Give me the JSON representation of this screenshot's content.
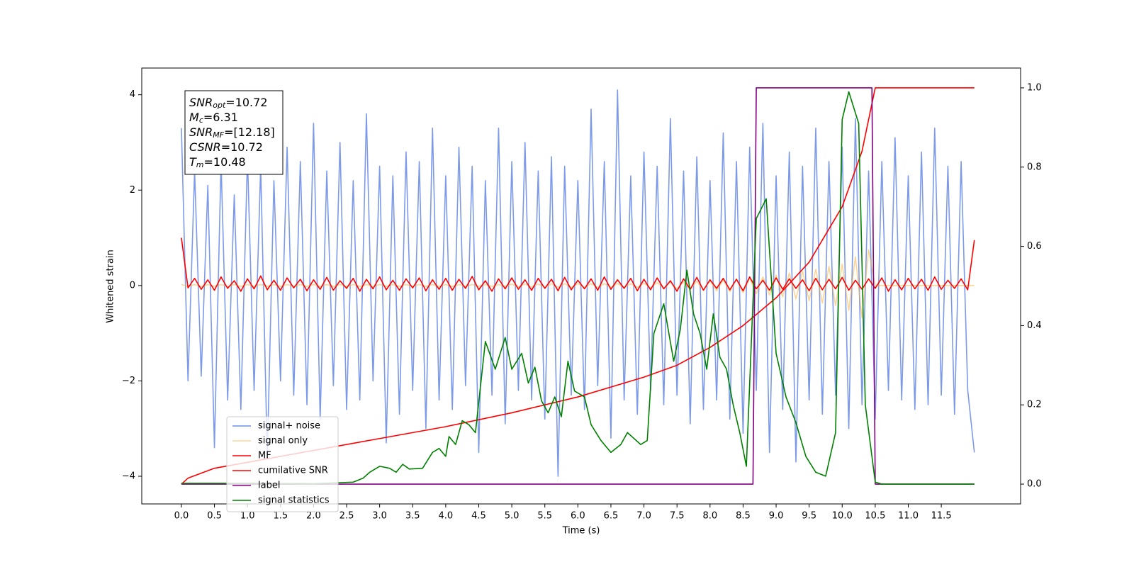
{
  "chart_data": {
    "type": "line",
    "xlabel": "Time (s)",
    "ylabel": "Whitened strain",
    "xlim": [
      -0.6,
      12.7
    ],
    "ylim": [
      -4.58,
      4.56
    ],
    "y2lim": [
      -0.05,
      1.05
    ],
    "xticks": [
      {
        "value": 0,
        "label": "0.0"
      },
      0.5,
      {
        "value": 1,
        "label": "1.0"
      },
      1.5,
      {
        "value": 2,
        "label": "2.0"
      },
      2.5,
      {
        "value": 3,
        "label": "3.0"
      },
      3.5,
      {
        "value": 4,
        "label": "4.0"
      },
      4.5,
      {
        "value": 5,
        "label": "5.0"
      },
      5.5,
      {
        "value": 6,
        "label": "6.0"
      },
      6.5,
      {
        "value": 7,
        "label": "7.0"
      },
      7.5,
      {
        "value": 8,
        "label": "8.0"
      },
      8.5,
      {
        "value": 9,
        "label": "9.0"
      },
      9.5,
      {
        "value": 10,
        "label": "10.0"
      },
      10.5,
      {
        "value": 11,
        "label": "11.0"
      },
      11.5
    ],
    "yticks": [
      {
        "value": -4,
        "label": "−4"
      },
      {
        "value": -2,
        "label": "−2"
      },
      0,
      2,
      4
    ],
    "y2ticks": [
      {
        "value": 0,
        "label": "0.0"
      },
      0.2,
      0.4,
      0.6,
      0.8,
      {
        "value": 1,
        "label": "1.0"
      }
    ],
    "legend": "lower left",
    "annotation": [
      {
        "base": "SNR",
        "sub": "opt",
        "text": "=10.72"
      },
      {
        "base": "M",
        "sub": "c",
        "text": "=6.31"
      },
      {
        "base": "SNR",
        "sub": "MF",
        "text": "=[12.18]"
      },
      {
        "base": "CSNR",
        "text": "=10.72"
      },
      {
        "base": "T",
        "sub": "m",
        "text": "=10.48"
      }
    ],
    "x": [
      0,
      0.1,
      0.2,
      0.3,
      0.4,
      0.5,
      0.6,
      0.7,
      0.8,
      0.9,
      1,
      1.1,
      1.2,
      1.3,
      1.4,
      1.5,
      1.6,
      1.7,
      1.8,
      1.9,
      2,
      2.1,
      2.2,
      2.3,
      2.4,
      2.5,
      2.6,
      2.7,
      2.8,
      2.9,
      3,
      3.1,
      3.2,
      3.3,
      3.4,
      3.5,
      3.6,
      3.7,
      3.8,
      3.9,
      4,
      4.1,
      4.2,
      4.3,
      4.4,
      4.5,
      4.6,
      4.7,
      4.8,
      4.9,
      5,
      5.1,
      5.2,
      5.3,
      5.4,
      5.5,
      5.6,
      5.7,
      5.8,
      5.9,
      6,
      6.1,
      6.2,
      6.3,
      6.4,
      6.5,
      6.6,
      6.7,
      6.8,
      6.9,
      7,
      7.1,
      7.2,
      7.3,
      7.4,
      7.5,
      7.6,
      7.7,
      7.8,
      7.9,
      8,
      8.1,
      8.2,
      8.3,
      8.4,
      8.5,
      8.6,
      8.7,
      8.8,
      8.9,
      9,
      9.1,
      9.2,
      9.3,
      9.4,
      9.5,
      9.6,
      9.7,
      9.8,
      9.9,
      10,
      10.1,
      10.2,
      10.3,
      10.4,
      10.5,
      10.6,
      10.7,
      10.8,
      10.9,
      11,
      11.1,
      11.2,
      11.3,
      11.4,
      11.5,
      11.6,
      11.7,
      11.8,
      11.9,
      12
    ],
    "series": [
      {
        "name": "signal+ noise",
        "color": "#6f8fe8",
        "values": [
          3.3,
          -2.0,
          2.4,
          -1.9,
          2.1,
          -3.4,
          2.6,
          -2.4,
          1.9,
          -2.6,
          2.7,
          -2.2,
          2.5,
          -3.6,
          2.2,
          -2.0,
          2.9,
          -2.3,
          2.6,
          -2.5,
          3.4,
          -2.8,
          2.4,
          -2.1,
          3.0,
          -2.6,
          2.2,
          -2.4,
          3.6,
          -2.0,
          2.5,
          -3.3,
          2.3,
          -2.7,
          2.8,
          -2.2,
          2.6,
          -3.0,
          3.3,
          -2.4,
          2.3,
          -2.6,
          2.9,
          -2.1,
          2.5,
          -3.5,
          2.2,
          -2.3,
          3.3,
          -2.9,
          2.6,
          -2.2,
          3.0,
          -2.4,
          2.4,
          -2.8,
          2.7,
          -4.0,
          2.5,
          -2.3,
          2.2,
          -2.6,
          3.7,
          -2.1,
          2.6,
          -3.2,
          4.1,
          -2.4,
          2.3,
          -2.7,
          2.8,
          -2.2,
          2.5,
          -2.5,
          3.5,
          -2.3,
          2.4,
          -2.9,
          2.7,
          -2.6,
          2.2,
          -2.4,
          3.2,
          -2.8,
          2.6,
          -3.1,
          2.9,
          -2.2,
          3.4,
          -3.5,
          2.3,
          -2.6,
          2.8,
          -3.7,
          2.5,
          -2.4,
          3.3,
          -2.7,
          2.6,
          -2.3,
          2.9,
          -3.0,
          3.5,
          -2.5,
          2.4,
          -2.8,
          2.6,
          -2.2,
          3.1,
          -2.4,
          2.3,
          -2.6,
          2.8,
          -2.5,
          3.3,
          -2.3,
          2.5,
          -2.7,
          2.6,
          -2.2,
          -3.5
        ]
      },
      {
        "name": "signal only",
        "color": "#f5b342",
        "values": [
          0.02,
          -0.02,
          0.02,
          -0.02,
          0.02,
          -0.02,
          0.02,
          -0.02,
          0.02,
          -0.02,
          0.02,
          -0.02,
          0.02,
          -0.02,
          0.02,
          -0.02,
          0.02,
          -0.02,
          0.02,
          -0.02,
          0.02,
          -0.02,
          0.02,
          -0.02,
          0.02,
          -0.02,
          0.02,
          -0.02,
          0.02,
          -0.02,
          0.02,
          -0.02,
          0.02,
          -0.02,
          0.02,
          -0.02,
          0.02,
          -0.02,
          0.02,
          -0.02,
          0.02,
          -0.02,
          0.02,
          -0.02,
          0.02,
          -0.02,
          0.02,
          -0.02,
          0.02,
          -0.02,
          0.03,
          -0.03,
          0.03,
          -0.03,
          0.03,
          -0.04,
          0.04,
          -0.04,
          0.04,
          -0.04,
          0.04,
          -0.04,
          0.04,
          -0.04,
          0.04,
          -0.04,
          0.04,
          -0.04,
          0.04,
          -0.04,
          0.05,
          -0.05,
          0.06,
          -0.06,
          0.07,
          -0.07,
          0.08,
          -0.08,
          0.09,
          -0.09,
          0.1,
          -0.11,
          0.12,
          -0.13,
          0.14,
          -0.15,
          0.16,
          -0.17,
          0.18,
          -0.2,
          0.22,
          -0.24,
          0.26,
          -0.28,
          0.3,
          -0.32,
          0.34,
          -0.37,
          0.4,
          -0.42,
          0.45,
          -0.52,
          0.6,
          -0.68,
          0.75,
          0,
          0,
          0,
          0,
          0,
          0,
          0,
          0,
          0,
          0,
          0,
          0,
          0,
          0,
          0,
          0
        ]
      },
      {
        "name": "MF",
        "color": "#ff0000",
        "values": [
          1.0,
          -0.05,
          0.15,
          -0.08,
          0.12,
          -0.1,
          0.18,
          -0.06,
          0.1,
          -0.12,
          0.14,
          -0.07,
          0.2,
          -0.09,
          0.11,
          -0.1,
          0.16,
          -0.05,
          0.13,
          -0.11,
          0.12,
          -0.08,
          0.17,
          -0.1,
          0.1,
          -0.06,
          0.15,
          -0.12,
          0.13,
          -0.07,
          0.18,
          -0.09,
          0.11,
          -0.1,
          0.14,
          -0.05,
          0.16,
          -0.11,
          0.12,
          -0.08,
          0.15,
          -0.1,
          0.13,
          -0.06,
          0.19,
          -0.09,
          0.1,
          -0.12,
          0.14,
          -0.07,
          0.16,
          -0.08,
          0.12,
          -0.1,
          0.15,
          -0.06,
          0.13,
          -0.11,
          0.17,
          -0.09,
          0.11,
          -0.07,
          0.14,
          -0.1,
          0.18,
          -0.08,
          0.12,
          -0.06,
          0.15,
          -0.11,
          0.13,
          -0.09,
          0.16,
          -0.07,
          0.1,
          -0.12,
          0.14,
          -0.08,
          0.17,
          -0.1,
          0.12,
          -0.06,
          0.15,
          -0.09,
          0.13,
          -0.11,
          0.18,
          -0.07,
          0.11,
          -0.1,
          0.16,
          -0.08,
          0.14,
          -0.06,
          0.12,
          -0.11,
          0.15,
          -0.09,
          0.13,
          -0.07,
          0.17,
          -0.1,
          0.11,
          -0.08,
          0.14,
          -0.06,
          0.16,
          -0.12,
          0.12,
          -0.09,
          0.15,
          -0.07,
          0.13,
          -0.1,
          0.18,
          -0.08,
          0.11,
          -0.06,
          0.14,
          -0.09,
          0.95
        ]
      },
      {
        "name": "cumilative SNR",
        "color": "#ff0000",
        "axis": "y2",
        "x": [
          0,
          0.1,
          0.5,
          1,
          2,
          3,
          4,
          5,
          6,
          7,
          7.5,
          8,
          8.5,
          9,
          9.5,
          10,
          10.3,
          10.5,
          12
        ],
        "values": [
          0,
          0.015,
          0.04,
          0.055,
          0.085,
          0.115,
          0.145,
          0.18,
          0.22,
          0.27,
          0.3,
          0.345,
          0.4,
          0.47,
          0.56,
          0.7,
          0.84,
          1.0,
          1.0
        ]
      },
      {
        "name": "label",
        "color": "#800080",
        "axis": "y2",
        "x": [
          0,
          8.65,
          8.7,
          10.45,
          10.5,
          12
        ],
        "values": [
          0,
          0,
          1,
          1,
          0,
          0
        ]
      },
      {
        "name": "signal statistics",
        "color": "#008000",
        "axis": "y2",
        "x": [
          0,
          1,
          2,
          2.6,
          2.75,
          2.85,
          3.0,
          3.15,
          3.25,
          3.35,
          3.45,
          3.65,
          3.8,
          3.9,
          4.0,
          4.05,
          4.15,
          4.25,
          4.35,
          4.45,
          4.6,
          4.75,
          4.9,
          5.0,
          5.15,
          5.25,
          5.35,
          5.45,
          5.55,
          5.65,
          5.75,
          5.85,
          5.95,
          6.1,
          6.2,
          6.35,
          6.5,
          6.65,
          6.75,
          6.95,
          7.05,
          7.15,
          7.3,
          7.45,
          7.55,
          7.65,
          7.75,
          7.85,
          7.95,
          8.05,
          8.15,
          8.25,
          8.35,
          8.45,
          8.55,
          8.7,
          8.85,
          9.0,
          9.15,
          9.3,
          9.45,
          9.6,
          9.75,
          9.9,
          10.0,
          10.1,
          10.25,
          10.35,
          10.5,
          10.6,
          12
        ],
        "values": [
          0.002,
          0.002,
          0.001,
          0.005,
          0.015,
          0.03,
          0.045,
          0.04,
          0.03,
          0.05,
          0.038,
          0.04,
          0.08,
          0.09,
          0.07,
          0.12,
          0.1,
          0.16,
          0.15,
          0.13,
          0.36,
          0.29,
          0.37,
          0.29,
          0.33,
          0.255,
          0.295,
          0.21,
          0.18,
          0.22,
          0.17,
          0.31,
          0.235,
          0.22,
          0.15,
          0.11,
          0.08,
          0.1,
          0.13,
          0.1,
          0.11,
          0.38,
          0.455,
          0.31,
          0.39,
          0.54,
          0.43,
          0.38,
          0.29,
          0.43,
          0.32,
          0.29,
          0.2,
          0.13,
          0.045,
          0.67,
          0.72,
          0.33,
          0.22,
          0.155,
          0.07,
          0.03,
          0.02,
          0.13,
          0.92,
          0.99,
          0.91,
          0.2,
          0.005,
          0,
          0
        ]
      }
    ]
  }
}
